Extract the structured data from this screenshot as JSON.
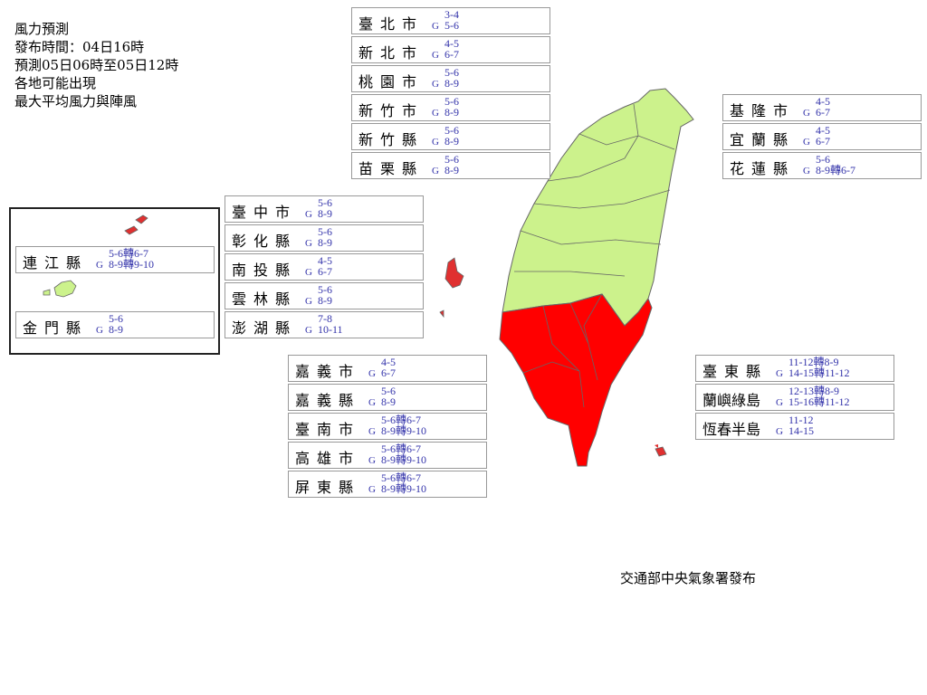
{
  "header": {
    "lines": [
      "風力預測",
      "發布時間：04日16時",
      "預測05日06時至05日12時",
      "各地可能出現",
      "最大平均風力與陣風"
    ]
  },
  "gust_prefix": "G",
  "colors": {
    "low": "#ccf28c",
    "high": "#ff0000",
    "border": "#666666",
    "value_text": "#3333aa"
  },
  "regions": [
    {
      "name": "臺北市",
      "wind": "3-4",
      "gust": "5-6",
      "level": "low"
    },
    {
      "name": "新北市",
      "wind": "4-5",
      "gust": "6-7",
      "level": "low"
    },
    {
      "name": "桃園市",
      "wind": "5-6",
      "gust": "8-9",
      "level": "low"
    },
    {
      "name": "新竹市",
      "wind": "5-6",
      "gust": "8-9",
      "level": "low"
    },
    {
      "name": "新竹縣",
      "wind": "5-6",
      "gust": "8-9",
      "level": "low"
    },
    {
      "name": "苗栗縣",
      "wind": "5-6",
      "gust": "8-9",
      "level": "low"
    },
    {
      "name": "臺中市",
      "wind": "5-6",
      "gust": "8-9",
      "level": "low"
    },
    {
      "name": "彰化縣",
      "wind": "5-6",
      "gust": "8-9",
      "level": "low"
    },
    {
      "name": "南投縣",
      "wind": "4-5",
      "gust": "6-7",
      "level": "low"
    },
    {
      "name": "雲林縣",
      "wind": "5-6",
      "gust": "8-9",
      "level": "low"
    },
    {
      "name": "澎湖縣",
      "wind": "7-8",
      "gust": "10-11",
      "level": "high"
    },
    {
      "name": "嘉義市",
      "wind": "4-5",
      "gust": "6-7",
      "level": "low"
    },
    {
      "name": "嘉義縣",
      "wind": "5-6",
      "gust": "8-9",
      "level": "low"
    },
    {
      "name": "臺南市",
      "wind": "5-6轉6-7",
      "gust": "8-9轉9-10",
      "level": "high"
    },
    {
      "name": "高雄市",
      "wind": "5-6轉6-7",
      "gust": "8-9轉9-10",
      "level": "high"
    },
    {
      "name": "屏東縣",
      "wind": "5-6轉6-7",
      "gust": "8-9轉9-10",
      "level": "high"
    },
    {
      "name": "基隆市",
      "wind": "4-5",
      "gust": "6-7",
      "level": "low"
    },
    {
      "name": "宜蘭縣",
      "wind": "4-5",
      "gust": "6-7",
      "level": "low"
    },
    {
      "name": "花蓮縣",
      "wind": "5-6",
      "gust": "8-9轉6-7",
      "level": "low"
    },
    {
      "name": "臺東縣",
      "wind": "11-12轉8-9",
      "gust": "14-15轉11-12",
      "level": "high"
    },
    {
      "name": "蘭嶼綠島",
      "wind": "12-13轉8-9",
      "gust": "15-16轉11-12",
      "level": "high"
    },
    {
      "name": "恆春半島",
      "wind": "11-12",
      "gust": "14-15",
      "level": "high"
    },
    {
      "name": "連江縣",
      "wind": "5-6轉6-7",
      "gust": "8-9轉9-10",
      "level": "high"
    },
    {
      "name": "金門縣",
      "wind": "5-6",
      "gust": "8-9",
      "level": "low"
    }
  ],
  "footer": "交通部中央氣象署發布"
}
